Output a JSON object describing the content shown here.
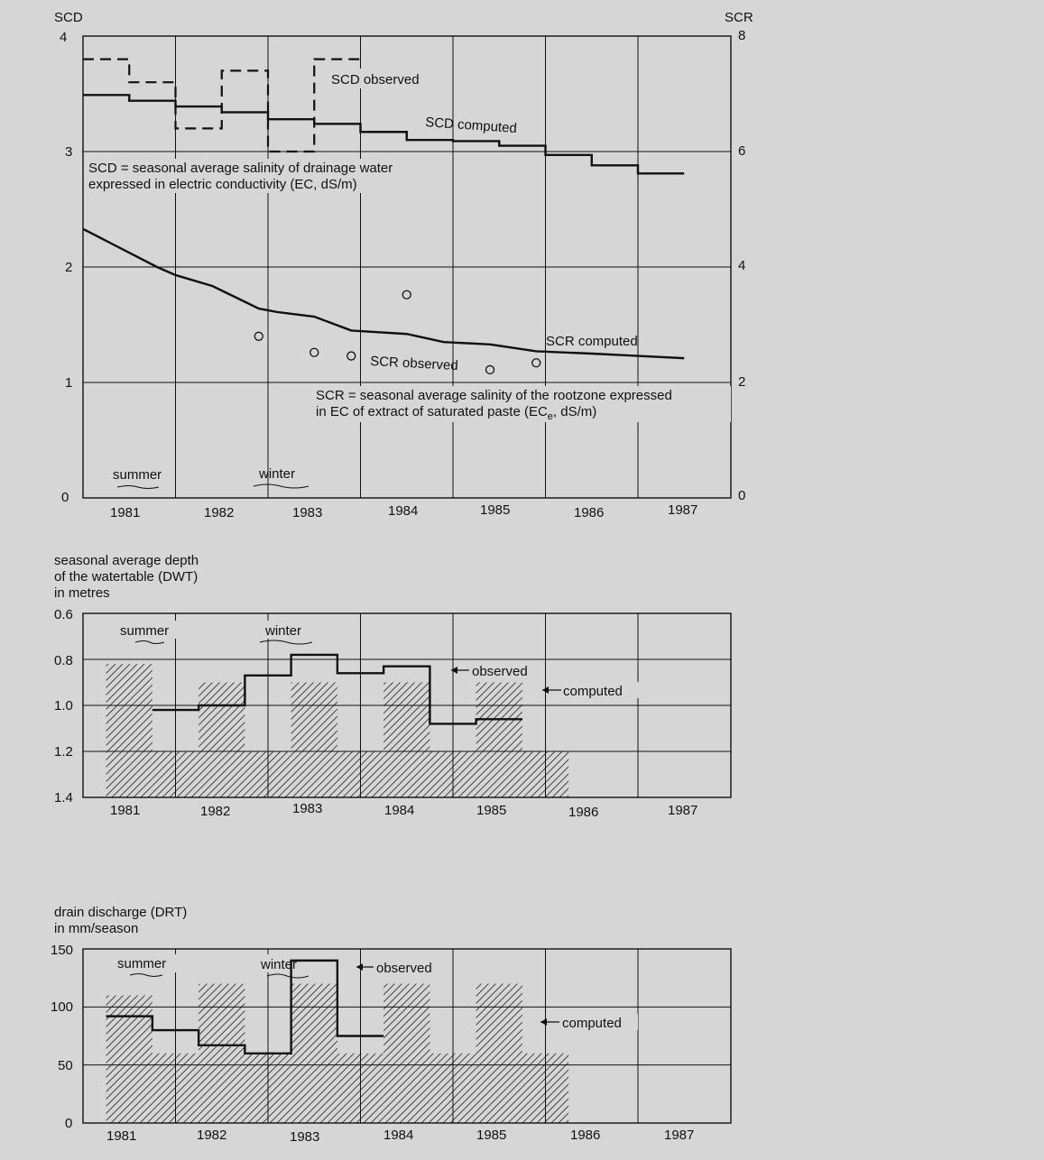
{
  "chart_data": [
    {
      "type": "line",
      "y_axis_left_label": "SCD",
      "y_axis_right_label": "SCR",
      "x_ticks": [
        "1981",
        "1982",
        "1983",
        "1984",
        "1985",
        "1986",
        "1987"
      ],
      "y_ticks_left": [
        "0",
        "1",
        "2",
        "3",
        "4"
      ],
      "y_ticks_right": [
        "0",
        "2",
        "4",
        "6",
        "8"
      ],
      "ylim_left": [
        0,
        4
      ],
      "ylim_right": [
        0,
        8
      ],
      "season_labels": [
        "summer",
        "winter"
      ],
      "annotations": {
        "scd_definition_1": "SCD = seasonal average salinity of drainage water",
        "scd_definition_2": "expressed in electric conductivity (EC, dS/m)",
        "scr_definition_1": "SCR = seasonal average salinity of the rootzone expressed",
        "scr_definition_2_prefix": "in EC of extract of saturated paste (EC",
        "scr_definition_2_sub": "e",
        "scr_definition_2_suffix": ", dS/m)"
      },
      "series": [
        {
          "name": "SCD observed",
          "style": "dashed-step",
          "values": [
            3.8,
            3.6,
            3.2,
            3.7,
            3.0,
            3.8
          ]
        },
        {
          "name": "SCD computed",
          "style": "solid-step",
          "values": [
            3.49,
            3.44,
            3.39,
            3.34,
            3.28,
            3.24,
            3.17,
            3.1,
            3.09,
            3.05,
            2.97,
            2.88,
            2.81
          ]
        },
        {
          "name": "SCR computed",
          "axis": "right",
          "style": "line",
          "x": [
            1980.5,
            1981.3,
            1981.5,
            1981.9,
            1982.4,
            1982.6,
            1983.0,
            1983.4,
            1984.0,
            1984.4,
            1984.9,
            1985.4,
            1986.0,
            1986.5,
            1987.0
          ],
          "values": [
            4.66,
            4.0,
            3.86,
            3.67,
            3.28,
            3.22,
            3.14,
            2.9,
            2.84,
            2.7,
            2.66,
            2.54,
            2.5,
            2.46,
            2.42
          ]
        },
        {
          "name": "SCR observed",
          "axis": "right",
          "style": "markers",
          "x": [
            1982.4,
            1983.0,
            1983.4,
            1984.0,
            1984.9,
            1985.4
          ],
          "values": [
            2.8,
            2.52,
            2.46,
            3.52,
            2.22,
            2.34
          ]
        }
      ]
    },
    {
      "type": "step",
      "y_axis_label_lines": [
        "seasonal average depth",
        "of the watertable (DWT)",
        "in metres"
      ],
      "x_ticks": [
        "1981",
        "1982",
        "1983",
        "1984",
        "1985",
        "1986",
        "1987"
      ],
      "y_ticks": [
        "0.6",
        "0.8",
        "1.0",
        "1.2",
        "1.4"
      ],
      "ylim": [
        0.6,
        1.4
      ],
      "y_inverted": true,
      "season_labels": [
        "summer",
        "winter"
      ],
      "series": [
        {
          "name": "observed",
          "style": "solid-step",
          "values": [
            1.02,
            1.0,
            0.87,
            0.78,
            0.86,
            0.83,
            1.08,
            1.06
          ]
        },
        {
          "name": "computed",
          "style": "hatched-bars",
          "values": [
            0.82,
            1.2,
            0.9,
            1.2,
            0.9,
            1.2,
            0.9,
            1.2,
            0.9,
            1.2
          ]
        }
      ]
    },
    {
      "type": "step",
      "y_axis_label_lines": [
        "drain discharge (DRT)",
        "in mm/season"
      ],
      "x_ticks": [
        "1981",
        "1982",
        "1983",
        "1984",
        "1985",
        "1986",
        "1987"
      ],
      "y_ticks": [
        "0",
        "50",
        "100",
        "150"
      ],
      "ylim": [
        0,
        150
      ],
      "season_labels": [
        "summer",
        "winter"
      ],
      "series": [
        {
          "name": "observed",
          "style": "solid-step",
          "values": [
            92,
            80,
            67,
            60,
            140,
            75
          ]
        },
        {
          "name": "computed",
          "style": "hatched-bars",
          "values": [
            110,
            60,
            120,
            60,
            120,
            60,
            120,
            60,
            120,
            60
          ]
        }
      ]
    }
  ]
}
